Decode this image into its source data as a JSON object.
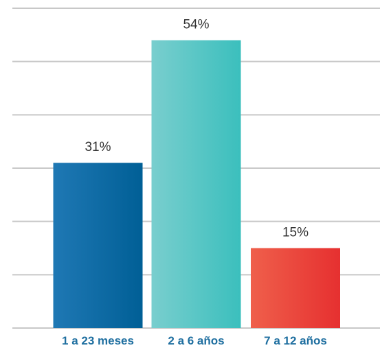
{
  "chart_data": {
    "type": "bar",
    "categories": [
      "1 a 23 meses",
      "2 a 6 años",
      "7 a 12 años"
    ],
    "values": [
      31,
      54,
      15
    ],
    "value_labels": [
      "31%",
      "54%",
      "15%"
    ],
    "ylim": [
      0,
      60
    ],
    "grid": true,
    "title": "",
    "xlabel": "",
    "ylabel": "",
    "colors": [
      [
        "#1f78b4",
        "#005f96"
      ],
      [
        "#79cece",
        "#3bbfbd"
      ],
      [
        "#ef5f4b",
        "#e63030"
      ]
    ],
    "category_label_color": "#1f6fa0"
  }
}
